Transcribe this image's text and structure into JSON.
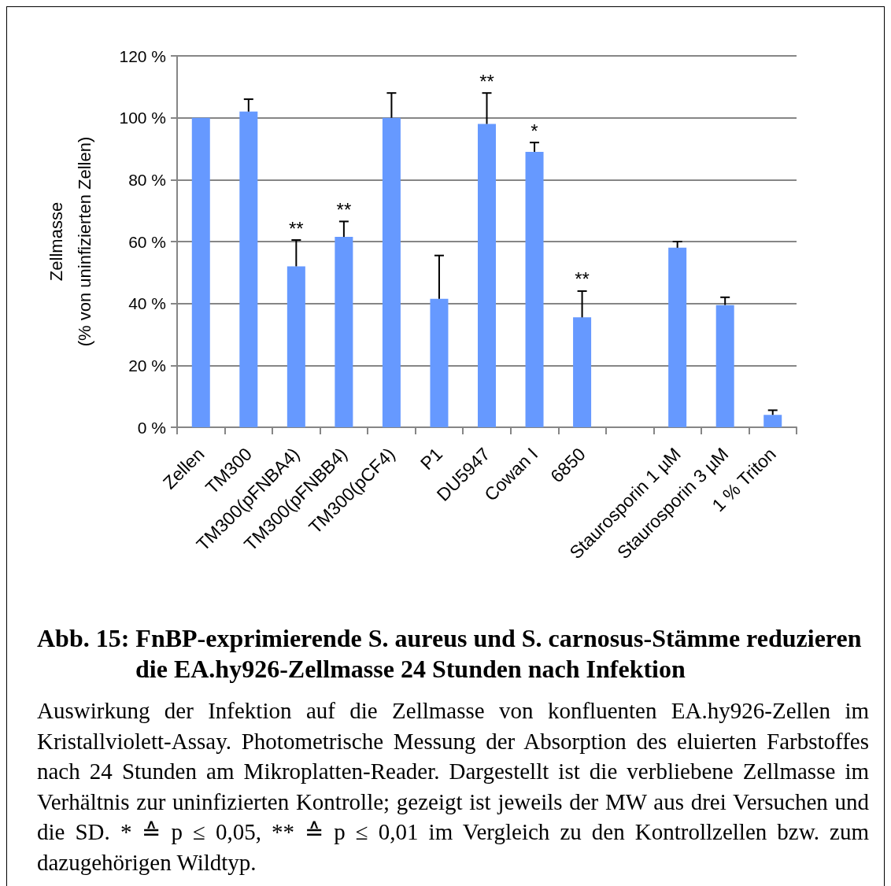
{
  "chart_data": {
    "type": "bar",
    "title": "Abb. 15: FnBP-exprimierende S. aureus und S. carnosus-Stämme reduzieren die EA.hy926-Zellmasse 24 Stunden nach Infektion",
    "ylabel": "Zellmasse\n(% von uninfizierten Zellen)",
    "categories": [
      "Zellen",
      "TM300",
      "TM300(pFNBA4)",
      "TM300(pFNBB4)",
      "TM300(pCF4)",
      "P1",
      "DU5947",
      "Cowan I",
      "6850",
      null,
      "Staurosporin 1 µM",
      "Staurosporin 3 µM",
      "1 % Triton"
    ],
    "values": [
      100,
      102,
      52,
      61.5,
      100,
      41.5,
      98,
      89,
      35.5,
      null,
      58,
      39.5,
      4
    ],
    "errors": [
      null,
      [
        102,
        106
      ],
      [
        52,
        60.5
      ],
      [
        61.5,
        66.5
      ],
      [
        100,
        108
      ],
      [
        41.5,
        55.5
      ],
      [
        98,
        108
      ],
      [
        89,
        92
      ],
      [
        35.5,
        44
      ],
      null,
      [
        58,
        60
      ],
      [
        39.5,
        42
      ],
      [
        4,
        5.5
      ]
    ],
    "color": "#6699ff",
    "ylim": [
      0,
      120
    ],
    "yticks": [
      {
        "value": 0,
        "label": "0 %"
      },
      {
        "value": 20,
        "label": "20 %"
      },
      {
        "value": 40,
        "label": "40 %"
      },
      {
        "value": 60,
        "label": "60 %"
      },
      {
        "value": 80,
        "label": "80 %"
      },
      {
        "value": 100,
        "label": "100 %"
      },
      {
        "value": 120,
        "label": "120 %"
      }
    ],
    "grid": "y",
    "annotations": [
      {
        "text": "**",
        "x": "TM300(pFNBA4)",
        "y": 60.5
      },
      {
        "text": "**",
        "x": "TM300(pFNBB4)",
        "y": 66.5
      },
      {
        "text": "**",
        "x": "DU5947",
        "y": 108
      },
      {
        "text": "*",
        "x": "Cowan I",
        "y": 92
      },
      {
        "text": "**",
        "x": "6850",
        "y": 44
      },
      "Auswirkung der Infektion auf die Zellmasse von konfluenten EA.hy926-Zellen im Kristallviolett-Assay. Photometrische Messung der Absorption des eluierten Farbstoffes nach 24 Stunden am Mikroplatten-Reader. Dargestellt ist die verbliebene Zellmasse im Verhältnis zur uninfizierten Kontrolle; gezeigt ist jeweils der MW aus drei Versuchen und die SD. * ≙ p ≤ 0,05, ** ≙ p ≤ 0,01 im Vergleich zu den Kontrollzellen bzw. zum dazugehörigen Wildtyp."
    ]
  }
}
